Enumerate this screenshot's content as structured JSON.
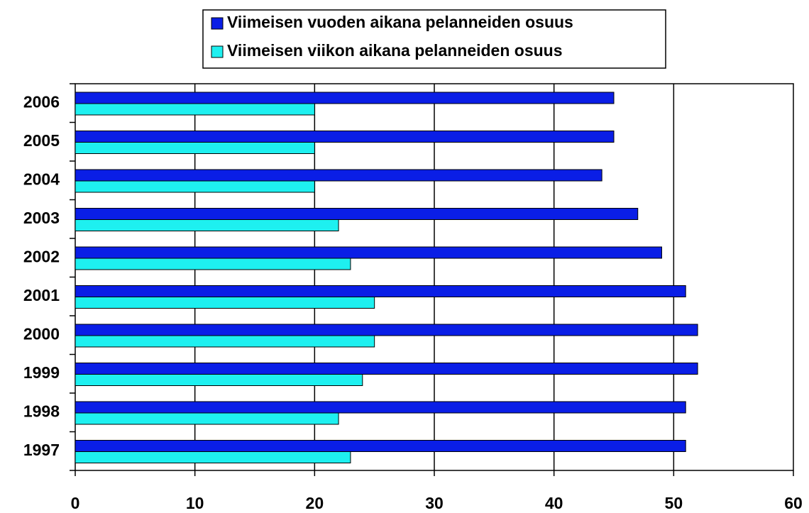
{
  "chart_data": {
    "type": "barh",
    "categories": [
      "2006",
      "2005",
      "2004",
      "2003",
      "2002",
      "2001",
      "2000",
      "1999",
      "1998",
      "1997"
    ],
    "series": [
      {
        "name": "Viimeisen vuoden aikana pelanneiden osuus",
        "color": "#0a1ee6",
        "values": [
          45,
          45,
          44,
          47,
          49,
          51,
          52,
          52,
          51,
          51
        ]
      },
      {
        "name": "Viimeisen viikon aikana pelanneiden osuus",
        "color": "#1ef0f0",
        "values": [
          20,
          20,
          20,
          22,
          23,
          25,
          25,
          24,
          22,
          23
        ]
      }
    ],
    "xlim": [
      0,
      60
    ],
    "xticks": [
      0,
      10,
      20,
      30,
      40,
      50,
      60
    ],
    "grid": true,
    "legend": "top"
  }
}
